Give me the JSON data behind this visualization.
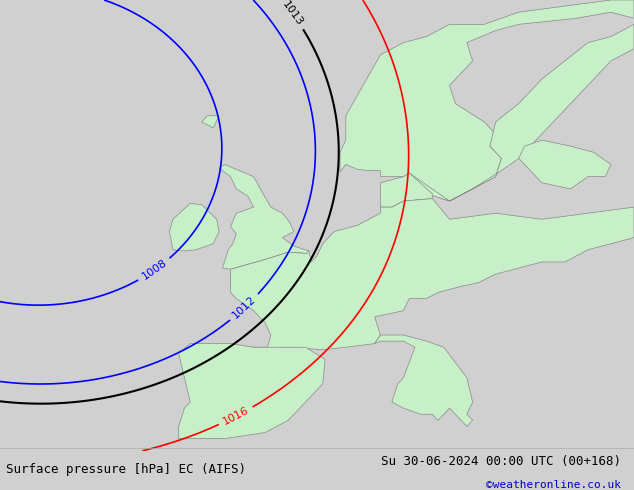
{
  "title_left": "Surface pressure [hPa] EC (AIFS)",
  "title_right": "Su 30-06-2024 00:00 UTC (00+168)",
  "title_right2": "©weatheronline.co.uk",
  "bg_ocean": "#e8e8e8",
  "bg_land_europe": "#c8f0c8",
  "bg_land_iberia": "#c8f0c8",
  "contour_colors": {
    "black": "#000000",
    "blue": "#0000ff",
    "red": "#ff0000"
  },
  "bottom_bar_color": "#f0f0f0",
  "text_color_right": "#0000cc",
  "font_size_bottom": 9
}
